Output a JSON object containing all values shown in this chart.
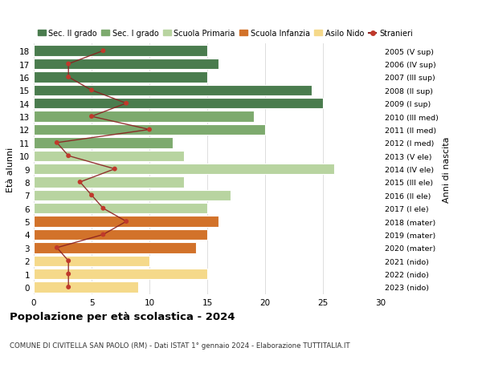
{
  "ages": [
    18,
    17,
    16,
    15,
    14,
    13,
    12,
    11,
    10,
    9,
    8,
    7,
    6,
    5,
    4,
    3,
    2,
    1,
    0
  ],
  "years": [
    "2005 (V sup)",
    "2006 (IV sup)",
    "2007 (III sup)",
    "2008 (II sup)",
    "2009 (I sup)",
    "2010 (III med)",
    "2011 (II med)",
    "2012 (I med)",
    "2013 (V ele)",
    "2014 (IV ele)",
    "2015 (III ele)",
    "2016 (II ele)",
    "2017 (I ele)",
    "2018 (mater)",
    "2019 (mater)",
    "2020 (mater)",
    "2021 (nido)",
    "2022 (nido)",
    "2023 (nido)"
  ],
  "bar_values": [
    15,
    16,
    15,
    24,
    25,
    19,
    20,
    12,
    13,
    26,
    13,
    17,
    15,
    16,
    15,
    14,
    10,
    15,
    9
  ],
  "stranieri": [
    6,
    3,
    3,
    5,
    8,
    5,
    10,
    2,
    3,
    7,
    4,
    5,
    6,
    8,
    6,
    2,
    3,
    3,
    3
  ],
  "colors": {
    "sec2": "#4a7c4e",
    "sec1": "#7daa6e",
    "primaria": "#b8d4a0",
    "infanzia": "#d2722a",
    "nido": "#f5d98a",
    "stranieri_line": "#8b2020",
    "stranieri_dot": "#c0392b"
  },
  "school_types": {
    "sec2": [
      18,
      17,
      16,
      15,
      14
    ],
    "sec1": [
      13,
      12,
      11
    ],
    "primaria": [
      10,
      9,
      8,
      7,
      6
    ],
    "infanzia": [
      5,
      4,
      3
    ],
    "nido": [
      2,
      1,
      0
    ]
  },
  "legend_labels": [
    "Sec. II grado",
    "Sec. I grado",
    "Scuola Primaria",
    "Scuola Infanzia",
    "Asilo Nido",
    "Stranieri"
  ],
  "ylabel_left": "Età alunni",
  "ylabel_right": "Anni di nascita",
  "title": "Popolazione per età scolastica - 2024",
  "subtitle": "COMUNE DI CIVITELLA SAN PAOLO (RM) - Dati ISTAT 1° gennaio 2024 - Elaborazione TUTTITALIA.IT",
  "xlim": [
    0,
    30
  ],
  "xticks": [
    0,
    5,
    10,
    15,
    20,
    25,
    30
  ],
  "bg_color": "#ffffff",
  "grid_color": "#d8d8d8"
}
